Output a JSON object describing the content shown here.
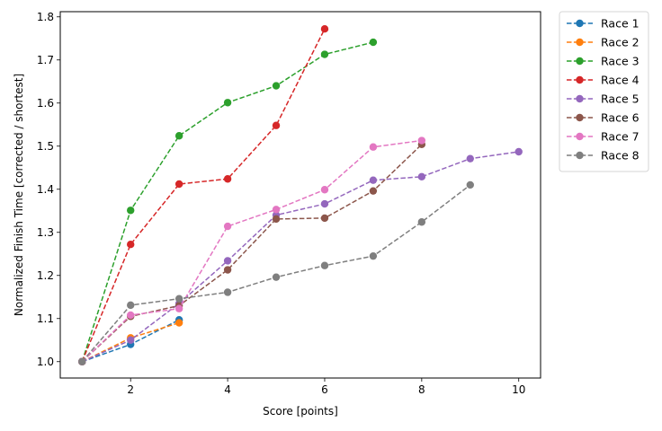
{
  "chart_data": {
    "type": "line",
    "title": "",
    "xlabel": "Score [points]",
    "ylabel": "Normalized Finish Time [corrected / shortest]",
    "xlim": [
      0.55,
      10.45
    ],
    "ylim": [
      0.962,
      1.812
    ],
    "xticks": [
      2,
      4,
      6,
      8,
      10
    ],
    "yticks": [
      1.0,
      1.1,
      1.2,
      1.3,
      1.4,
      1.5,
      1.6,
      1.7,
      1.8
    ],
    "xtick_labels": [
      "2",
      "4",
      "6",
      "8",
      "10"
    ],
    "ytick_labels": [
      "1.0",
      "1.1",
      "1.2",
      "1.3",
      "1.4",
      "1.5",
      "1.6",
      "1.7",
      "1.8"
    ],
    "grid": false,
    "legend_position": "outside-top-right",
    "series": [
      {
        "name": "Race 1",
        "color": "#1f77b4",
        "x": [
          1,
          2,
          3
        ],
        "y": [
          1.0,
          1.04,
          1.097
        ]
      },
      {
        "name": "Race 2",
        "color": "#ff7f0e",
        "x": [
          1,
          2,
          3
        ],
        "y": [
          1.0,
          1.055,
          1.09
        ]
      },
      {
        "name": "Race 3",
        "color": "#2ca02c",
        "x": [
          1,
          2,
          3,
          4,
          5,
          6,
          7
        ],
        "y": [
          1.0,
          1.351,
          1.524,
          1.601,
          1.64,
          1.713,
          1.741
        ]
      },
      {
        "name": "Race 4",
        "color": "#d62728",
        "x": [
          1,
          2,
          3,
          4,
          5,
          6
        ],
        "y": [
          1.0,
          1.272,
          1.412,
          1.424,
          1.548,
          1.772
        ]
      },
      {
        "name": "Race 5",
        "color": "#9467bd",
        "x": [
          1,
          2,
          3,
          4,
          5,
          6,
          7,
          8,
          9,
          10
        ],
        "y": [
          1.0,
          1.05,
          1.135,
          1.234,
          1.34,
          1.366,
          1.421,
          1.429,
          1.471,
          1.487
        ]
      },
      {
        "name": "Race 6",
        "color": "#8c564b",
        "x": [
          1,
          2,
          3,
          4,
          5,
          6,
          7,
          8
        ],
        "y": [
          1.0,
          1.105,
          1.13,
          1.213,
          1.331,
          1.333,
          1.396,
          1.504
        ]
      },
      {
        "name": "Race 7",
        "color": "#e377c2",
        "x": [
          1,
          2,
          3,
          4,
          5,
          6,
          7,
          8
        ],
        "y": [
          1.0,
          1.108,
          1.123,
          1.314,
          1.353,
          1.399,
          1.498,
          1.513
        ]
      },
      {
        "name": "Race 8",
        "color": "#7f7f7f",
        "x": [
          1,
          2,
          3,
          4,
          5,
          6,
          7,
          8,
          9
        ],
        "y": [
          1.0,
          1.131,
          1.146,
          1.161,
          1.196,
          1.223,
          1.245,
          1.324,
          1.41
        ]
      }
    ]
  }
}
